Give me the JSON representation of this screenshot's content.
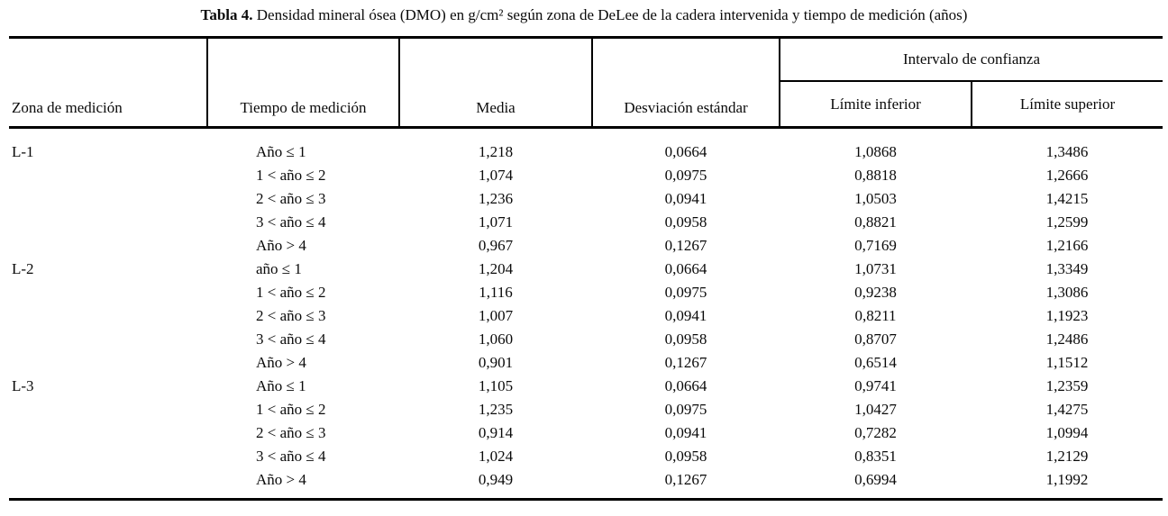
{
  "caption": {
    "label": "Tabla 4.",
    "text": " Densidad mineral ósea (DMO) en g/cm² según zona de DeLee de la cadera intervenida y tiempo de medición (años)"
  },
  "header": {
    "zone": "Zona de medición",
    "time": "Tiempo de medición",
    "mean": "Media",
    "sd": "Desviación estándar",
    "ci_group": "Intervalo de confianza",
    "ci_lower": "Límite inferior",
    "ci_upper": "Límite superior"
  },
  "body_rows": [
    {
      "zone": "L-1",
      "tiempo": "Año ≤ 1",
      "media": "1,218",
      "sd": "0,0664",
      "low": "1,0868",
      "high": "1,3486"
    },
    {
      "zone": "",
      "tiempo": "1 < año ≤ 2",
      "media": "1,074",
      "sd": "0,0975",
      "low": "0,8818",
      "high": "1,2666"
    },
    {
      "zone": "",
      "tiempo": "2 < año ≤ 3",
      "media": "1,236",
      "sd": "0,0941",
      "low": "1,0503",
      "high": "1,4215"
    },
    {
      "zone": "",
      "tiempo": "3 < año ≤ 4",
      "media": "1,071",
      "sd": "0,0958",
      "low": "0,8821",
      "high": "1,2599"
    },
    {
      "zone": "",
      "tiempo": "Año > 4",
      "media": "0,967",
      "sd": "0,1267",
      "low": "0,7169",
      "high": "1,2166"
    },
    {
      "zone": "L-2",
      "tiempo": "año ≤ 1",
      "media": "1,204",
      "sd": "0,0664",
      "low": "1,0731",
      "high": "1,3349"
    },
    {
      "zone": "",
      "tiempo": "1 < año ≤ 2",
      "media": "1,116",
      "sd": "0,0975",
      "low": "0,9238",
      "high": "1,3086"
    },
    {
      "zone": "",
      "tiempo": "2 < año ≤ 3",
      "media": "1,007",
      "sd": "0,0941",
      "low": "0,8211",
      "high": "1,1923"
    },
    {
      "zone": "",
      "tiempo": "3 < año ≤ 4",
      "media": "1,060",
      "sd": "0,0958",
      "low": "0,8707",
      "high": "1,2486"
    },
    {
      "zone": "",
      "tiempo": "Año > 4",
      "media": "0,901",
      "sd": "0,1267",
      "low": "0,6514",
      "high": "1,1512"
    },
    {
      "zone": "L-3",
      "tiempo": "Año ≤ 1",
      "media": "1,105",
      "sd": "0,0664",
      "low": "0,9741",
      "high": "1,2359"
    },
    {
      "zone": "",
      "tiempo": "1 < año ≤ 2",
      "media": "1,235",
      "sd": "0,0975",
      "low": "1,0427",
      "high": "1,4275"
    },
    {
      "zone": "",
      "tiempo": "2 < año ≤ 3",
      "media": "0,914",
      "sd": "0,0941",
      "low": "0,7282",
      "high": "1,0994"
    },
    {
      "zone": "",
      "tiempo": "3 < año ≤ 4",
      "media": "1,024",
      "sd": "0,0958",
      "low": "0,8351",
      "high": "1,2129"
    },
    {
      "zone": "",
      "tiempo": "Año > 4",
      "media": "0,949",
      "sd": "0,1267",
      "low": "0,6994",
      "high": "1,1992"
    }
  ]
}
